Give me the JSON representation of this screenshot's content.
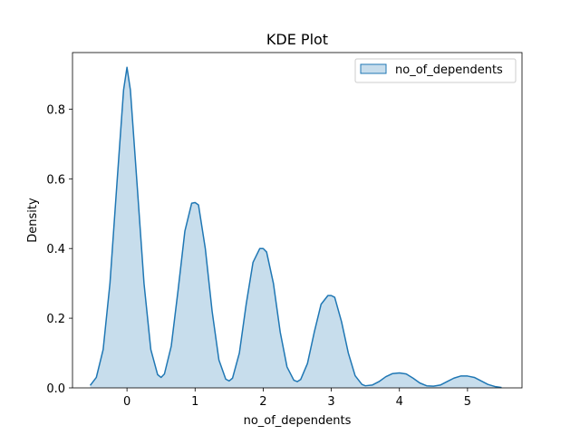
{
  "chart_data": {
    "type": "area",
    "title": "KDE Plot",
    "xlabel": "no_of_dependents",
    "ylabel": "Density",
    "xlim": [
      -0.8,
      5.8
    ],
    "ylim": [
      0,
      0.9624
    ],
    "x_ticks": [
      0,
      1,
      2,
      3,
      4,
      5
    ],
    "x_tick_labels": [
      "0",
      "1",
      "2",
      "3",
      "4",
      "5"
    ],
    "y_ticks": [
      0,
      0.2,
      0.4,
      0.6,
      0.8
    ],
    "y_tick_labels": [
      "0.0",
      "0.2",
      "0.4",
      "0.6",
      "0.8"
    ],
    "grid": false,
    "legend": {
      "position": "top-right"
    },
    "series": [
      {
        "name": "no_of_dependents",
        "color": "#1f77b4",
        "fill_color": "#1f77b4",
        "fill_opacity": 0.25,
        "x": [
          -0.54,
          -0.45,
          -0.35,
          -0.25,
          -0.15,
          -0.05,
          0.0,
          0.05,
          0.15,
          0.25,
          0.35,
          0.45,
          0.5,
          0.55,
          0.65,
          0.75,
          0.85,
          0.95,
          1.0,
          1.05,
          1.15,
          1.25,
          1.35,
          1.45,
          1.5,
          1.55,
          1.65,
          1.75,
          1.85,
          1.95,
          2.0,
          2.05,
          2.15,
          2.25,
          2.35,
          2.45,
          2.5,
          2.55,
          2.65,
          2.75,
          2.85,
          2.95,
          3.0,
          3.05,
          3.15,
          3.25,
          3.35,
          3.45,
          3.5,
          3.6,
          3.7,
          3.8,
          3.9,
          4.0,
          4.1,
          4.2,
          4.3,
          4.4,
          4.5,
          4.6,
          4.7,
          4.8,
          4.9,
          5.0,
          5.1,
          5.2,
          5.3,
          5.4,
          5.5
        ],
        "y": [
          0.007,
          0.03,
          0.11,
          0.3,
          0.58,
          0.855,
          0.92,
          0.855,
          0.58,
          0.3,
          0.11,
          0.038,
          0.03,
          0.04,
          0.12,
          0.28,
          0.45,
          0.53,
          0.532,
          0.525,
          0.4,
          0.22,
          0.08,
          0.025,
          0.02,
          0.028,
          0.1,
          0.24,
          0.36,
          0.4,
          0.4,
          0.39,
          0.3,
          0.16,
          0.06,
          0.022,
          0.018,
          0.024,
          0.07,
          0.16,
          0.24,
          0.265,
          0.265,
          0.26,
          0.19,
          0.1,
          0.035,
          0.01,
          0.006,
          0.008,
          0.018,
          0.032,
          0.041,
          0.043,
          0.04,
          0.028,
          0.014,
          0.006,
          0.005,
          0.008,
          0.018,
          0.028,
          0.034,
          0.034,
          0.03,
          0.02,
          0.01,
          0.004,
          0.001
        ]
      }
    ]
  }
}
